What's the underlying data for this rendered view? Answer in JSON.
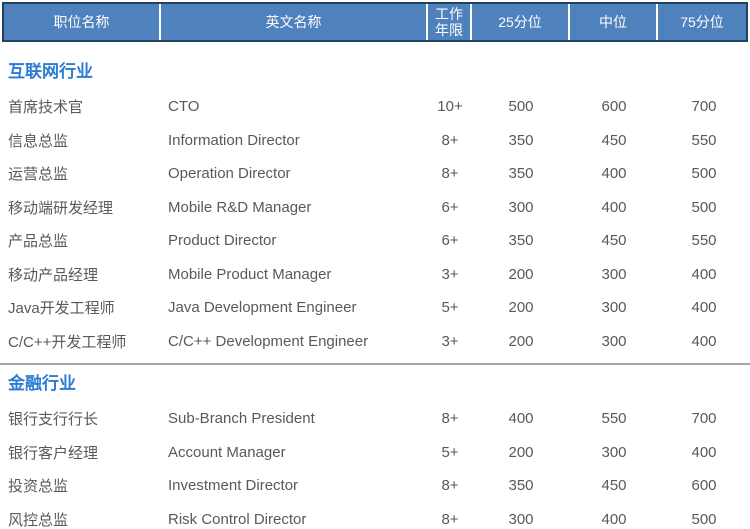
{
  "table": {
    "columns": [
      {
        "label": "职位名称"
      },
      {
        "label": "英文名称"
      },
      {
        "label": "工作年限"
      },
      {
        "label": "25分位"
      },
      {
        "label": "中位"
      },
      {
        "label": "75分位"
      }
    ],
    "sections": [
      {
        "title": "互联网行业",
        "rows": [
          [
            "首席技术官",
            "CTO",
            "10+",
            "500",
            "600",
            "700"
          ],
          [
            "信息总监",
            "Information Director",
            "8+",
            "350",
            "450",
            "550"
          ],
          [
            "运营总监",
            "Operation Director",
            "8+",
            "350",
            "400",
            "500"
          ],
          [
            "移动端研发经理",
            "Mobile R&D Manager",
            "6+",
            "300",
            "400",
            "500"
          ],
          [
            "产品总监",
            "Product Director",
            "6+",
            "350",
            "450",
            "550"
          ],
          [
            "移动产品经理",
            "Mobile Product Manager",
            "3+",
            "200",
            "300",
            "400"
          ],
          [
            "Java开发工程师",
            "Java Development Engineer",
            "5+",
            "200",
            "300",
            "400"
          ],
          [
            "C/C++开发工程师",
            "C/C++ Development Engineer",
            "3+",
            "200",
            "300",
            "400"
          ]
        ]
      },
      {
        "title": "金融行业",
        "rows": [
          [
            "银行支行行长",
            "Sub-Branch President",
            "8+",
            "400",
            "550",
            "700"
          ],
          [
            "银行客户经理",
            "Account Manager",
            "5+",
            "200",
            "300",
            "400"
          ],
          [
            "投资总监",
            "Investment Director",
            "8+",
            "350",
            "450",
            "600"
          ],
          [
            "风控总监",
            "Risk Control Director",
            "8+",
            "300",
            "400",
            "500"
          ]
        ]
      }
    ]
  },
  "colors": {
    "header_bg": "#4f81bd",
    "header_border": "#24425f",
    "header_text": "#ffffff",
    "section_title": "#2b7cd3",
    "body_text": "#595959",
    "divider": "#a6a6a6"
  }
}
